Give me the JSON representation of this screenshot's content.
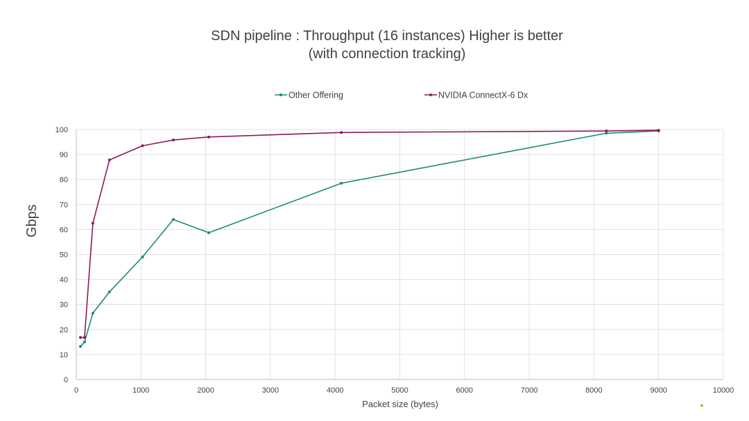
{
  "chart_data": {
    "type": "line",
    "title_lines": [
      "SDN pipeline : Throughput (16 instances) Higher is better",
      "(with connection tracking)"
    ],
    "xlabel": "Packet size (bytes)",
    "ylabel": "Gbps",
    "xlim": [
      0,
      10000
    ],
    "ylim": [
      0,
      100
    ],
    "xticks": [
      0,
      1000,
      2000,
      3000,
      4000,
      5000,
      6000,
      7000,
      8000,
      9000,
      10000
    ],
    "xtick_labels": [
      "0",
      "1000",
      "2000",
      "3000",
      "4000",
      "5000",
      "6000",
      "7000",
      "8000",
      "9000",
      "10000"
    ],
    "yticks": [
      0,
      10,
      20,
      30,
      40,
      50,
      60,
      70,
      80,
      90,
      100
    ],
    "ytick_labels": [
      "0",
      "10",
      "20",
      "30",
      "40",
      "50",
      "60",
      "70",
      "80",
      "90",
      "100"
    ],
    "grid": true,
    "legend_position": "top-center",
    "series": [
      {
        "name": "Other Offering",
        "color": "#1a8a78",
        "x": [
          64,
          128,
          256,
          512,
          1024,
          1500,
          2048,
          4096,
          8192,
          9000
        ],
        "y": [
          13.2,
          15,
          26.5,
          35,
          49,
          64,
          58.7,
          78.5,
          98.5,
          99.4
        ]
      },
      {
        "name": "NVIDIA ConnectX-6 Dx",
        "color": "#8b1a5c",
        "x": [
          64,
          128,
          256,
          512,
          1024,
          1500,
          2048,
          4096,
          8192,
          9000
        ],
        "y": [
          16.8,
          16.8,
          62.5,
          87.8,
          93.5,
          95.8,
          97,
          98.8,
          99.4,
          99.7
        ]
      }
    ]
  },
  "watermark_glyph": "◂"
}
